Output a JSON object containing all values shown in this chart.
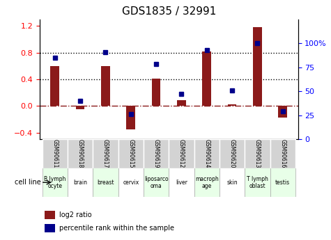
{
  "title": "GDS1835 / 32991",
  "gsm_labels": [
    "GSM90611",
    "GSM90618",
    "GSM90617",
    "GSM90615",
    "GSM90619",
    "GSM90612",
    "GSM90614",
    "GSM90620",
    "GSM90613",
    "GSM90616"
  ],
  "cell_labels": [
    "B lymph\nocyte",
    "brain",
    "breast",
    "cervix",
    "liposarco\noma",
    "liver",
    "macroph\nage",
    "skin",
    "T lymph\noblast",
    "testis"
  ],
  "cell_colors": [
    "#ccffcc",
    "#ccffcc",
    "#ccffcc",
    "#ccffcc",
    "#ccffcc",
    "#ccffcc",
    "#ccffcc",
    "#ccffcc",
    "#ccffcc",
    "#ccffcc"
  ],
  "log2_ratio": [
    0.6,
    -0.05,
    0.6,
    -0.35,
    0.41,
    0.09,
    0.82,
    0.02,
    1.18,
    -0.18
  ],
  "pct_rank": [
    85,
    40,
    91,
    26,
    78,
    47,
    93,
    51,
    100,
    29
  ],
  "ylim_left": [
    -0.5,
    1.3
  ],
  "ylim_right": [
    0,
    125
  ],
  "yticks_left": [
    -0.4,
    0.0,
    0.4,
    0.8,
    1.2
  ],
  "yticks_right": [
    0,
    25,
    50,
    75,
    100
  ],
  "hlines": [
    0.0,
    0.4,
    0.8
  ],
  "bar_color": "#8b1a1a",
  "dot_color": "#00008b",
  "bg_color": "#ffffff",
  "legend_red": "log2 ratio",
  "legend_blue": "percentile rank within the sample",
  "cell_line_label": "cell line",
  "dotted_hlines": [
    0.4,
    0.8
  ],
  "dashed_hline": 0.0
}
